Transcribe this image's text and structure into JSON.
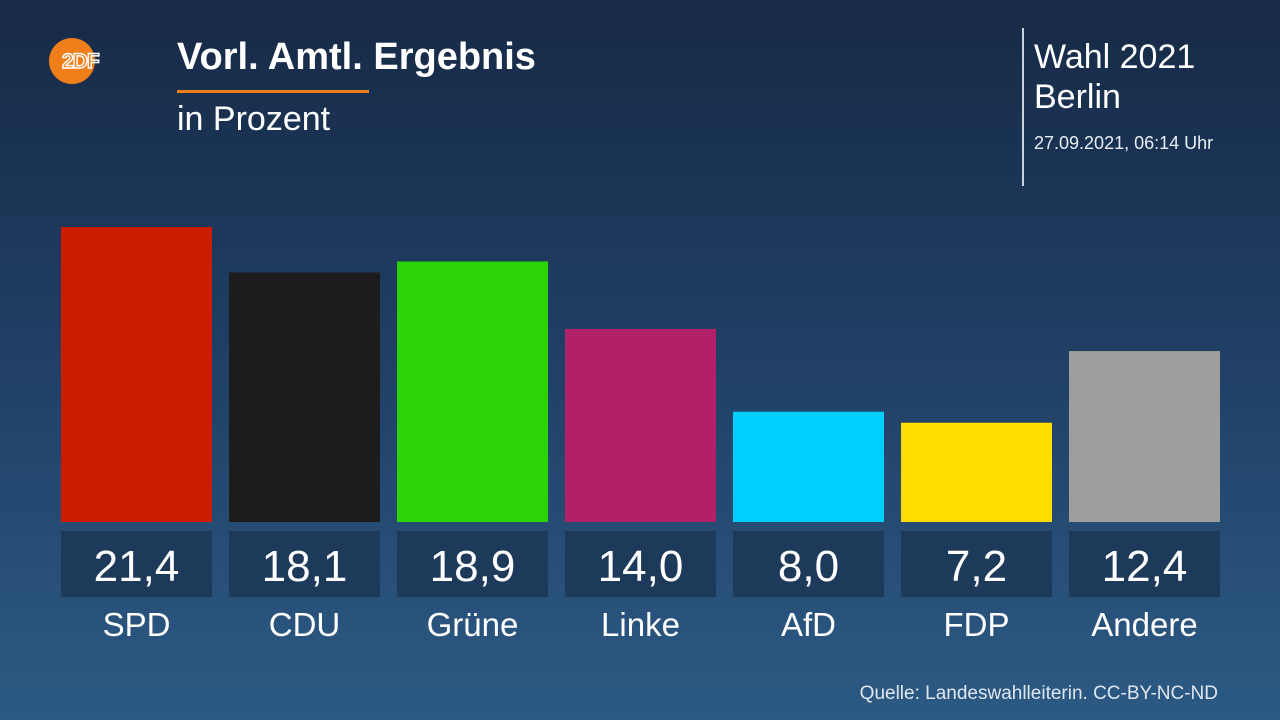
{
  "header": {
    "logo_text": "2DF",
    "title": "Vorl. Amtl. Ergebnis",
    "subtitle": "in Prozent"
  },
  "info": {
    "line1": "Wahl 2021",
    "line2": "Berlin",
    "date": "27.09.2021, 06:14 Uhr"
  },
  "footer": {
    "source": "Quelle: Landeswahlleiterin. CC-BY-NC-ND"
  },
  "colors": {
    "accent": "#f07f1a",
    "value_box": "#1d3a5a"
  },
  "chart_data": {
    "type": "bar",
    "categories": [
      "SPD",
      "CDU",
      "Grüne",
      "Linke",
      "AfD",
      "FDP",
      "Andere"
    ],
    "values": [
      21.4,
      18.1,
      18.9,
      14.0,
      8.0,
      7.2,
      12.4
    ],
    "value_labels": [
      "21,4",
      "18,1",
      "18,9",
      "14,0",
      "8,0",
      "7,2",
      "12,4"
    ],
    "colors": [
      "#cc1c00",
      "#1c1c1c",
      "#2bd407",
      "#b41f6a",
      "#00cfff",
      "#ffdd00",
      "#9e9e9e"
    ],
    "title": "Vorl. Amtl. Ergebnis",
    "xlabel": "",
    "ylabel": "",
    "ylim": [
      0,
      21.4
    ],
    "grid": false,
    "legend": "none"
  }
}
